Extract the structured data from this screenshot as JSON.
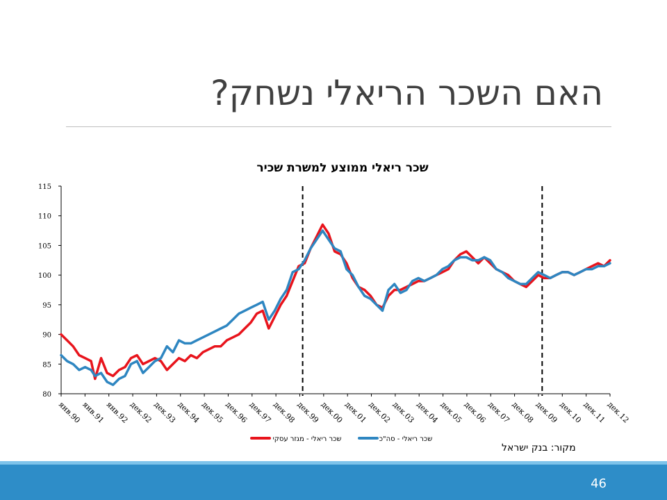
{
  "slide": {
    "title": "האם השכר הריאלי נשחק?",
    "source": "מקור: בנק ישראל",
    "page_number": "46"
  },
  "colors": {
    "series_red": "#e8141c",
    "series_blue": "#2e86c1",
    "footer": "#2e8dc8",
    "footer_accent": "#7ec3ea"
  },
  "chart_data": {
    "type": "line",
    "title": "שכר ריאלי ממוצע למשרת שכיר",
    "ylim": [
      80,
      115
    ],
    "yticks": [
      80,
      85,
      90,
      95,
      100,
      105,
      110,
      115
    ],
    "x_start": "1990-01",
    "x_end": "2012-12",
    "xtick_labels": [
      "янв.90",
      "янв.91",
      "янв.92",
      "дек.92",
      "дек.93",
      "дек.94",
      "дек.95",
      "дек.96",
      "дек.97",
      "дек.98",
      "дек.99",
      "дек.00",
      "дек.01",
      "дек.02",
      "дек.03",
      "дек.04",
      "дек.05",
      "дек.06",
      "дек.07",
      "дек.08",
      "дек.09",
      "дек.10",
      "дек.11",
      "дек.12"
    ],
    "vlines": [
      "2000-02",
      "2010-02"
    ],
    "legend_position": "bottom",
    "series": [
      {
        "name": "שכר ריאלי - מגזר עסקי",
        "color": "#e8141c",
        "points": [
          [
            "1990-01",
            90.0
          ],
          [
            "1990-04",
            89.0
          ],
          [
            "1990-07",
            88.0
          ],
          [
            "1990-10",
            86.5
          ],
          [
            "1991-01",
            86.0
          ],
          [
            "1991-04",
            85.5
          ],
          [
            "1991-06",
            82.5
          ],
          [
            "1991-09",
            86.0
          ],
          [
            "1991-12",
            83.5
          ],
          [
            "1992-03",
            83.0
          ],
          [
            "1992-06",
            84.0
          ],
          [
            "1992-09",
            84.5
          ],
          [
            "1992-12",
            86.0
          ],
          [
            "1993-03",
            86.5
          ],
          [
            "1993-06",
            85.0
          ],
          [
            "1993-09",
            85.5
          ],
          [
            "1993-12",
            86.0
          ],
          [
            "1994-03",
            85.5
          ],
          [
            "1994-06",
            84.0
          ],
          [
            "1994-09",
            85.0
          ],
          [
            "1994-12",
            86.0
          ],
          [
            "1995-03",
            85.5
          ],
          [
            "1995-06",
            86.5
          ],
          [
            "1995-09",
            86.0
          ],
          [
            "1995-12",
            87.0
          ],
          [
            "1996-03",
            87.5
          ],
          [
            "1996-06",
            88.0
          ],
          [
            "1996-09",
            88.0
          ],
          [
            "1996-12",
            89.0
          ],
          [
            "1997-03",
            89.5
          ],
          [
            "1997-06",
            90.0
          ],
          [
            "1997-09",
            91.0
          ],
          [
            "1997-12",
            92.0
          ],
          [
            "1998-03",
            93.5
          ],
          [
            "1998-06",
            94.0
          ],
          [
            "1998-09",
            91.0
          ],
          [
            "1998-12",
            93.0
          ],
          [
            "1999-03",
            95.0
          ],
          [
            "1999-06",
            96.5
          ],
          [
            "1999-09",
            99.0
          ],
          [
            "1999-12",
            101.5
          ],
          [
            "2000-03",
            102.0
          ],
          [
            "2000-06",
            104.5
          ],
          [
            "2000-09",
            106.5
          ],
          [
            "2000-12",
            108.5
          ],
          [
            "2001-03",
            107.0
          ],
          [
            "2001-06",
            104.0
          ],
          [
            "2001-09",
            103.5
          ],
          [
            "2001-12",
            102.0
          ],
          [
            "2002-03",
            99.5
          ],
          [
            "2002-06",
            98.0
          ],
          [
            "2002-09",
            97.5
          ],
          [
            "2002-12",
            96.5
          ],
          [
            "2003-03",
            95.0
          ],
          [
            "2003-06",
            94.5
          ],
          [
            "2003-09",
            96.5
          ],
          [
            "2003-12",
            97.5
          ],
          [
            "2004-03",
            97.5
          ],
          [
            "2004-06",
            98.0
          ],
          [
            "2004-09",
            98.5
          ],
          [
            "2004-12",
            99.0
          ],
          [
            "2005-03",
            99.0
          ],
          [
            "2005-06",
            99.5
          ],
          [
            "2005-09",
            100.0
          ],
          [
            "2005-12",
            100.5
          ],
          [
            "2006-03",
            101.0
          ],
          [
            "2006-06",
            102.5
          ],
          [
            "2006-09",
            103.5
          ],
          [
            "2006-12",
            104.0
          ],
          [
            "2007-03",
            103.0
          ],
          [
            "2007-06",
            102.0
          ],
          [
            "2007-09",
            103.0
          ],
          [
            "2007-12",
            102.0
          ],
          [
            "2008-03",
            101.0
          ],
          [
            "2008-06",
            100.5
          ],
          [
            "2008-09",
            100.0
          ],
          [
            "2008-12",
            99.0
          ],
          [
            "2009-03",
            98.5
          ],
          [
            "2009-06",
            98.0
          ],
          [
            "2009-09",
            99.0
          ],
          [
            "2009-12",
            100.0
          ],
          [
            "2010-03",
            99.5
          ],
          [
            "2010-06",
            99.5
          ],
          [
            "2010-09",
            100.0
          ],
          [
            "2010-12",
            100.5
          ],
          [
            "2011-03",
            100.5
          ],
          [
            "2011-06",
            100.0
          ],
          [
            "2011-09",
            100.5
          ],
          [
            "2011-12",
            101.0
          ],
          [
            "2012-03",
            101.5
          ],
          [
            "2012-06",
            102.0
          ],
          [
            "2012-09",
            101.5
          ],
          [
            "2012-12",
            102.5
          ]
        ]
      },
      {
        "name": "שכר ריאלי - סה\"כ",
        "color": "#2e86c1",
        "points": [
          [
            "1990-01",
            86.5
          ],
          [
            "1990-04",
            85.5
          ],
          [
            "1990-07",
            85.0
          ],
          [
            "1990-10",
            84.0
          ],
          [
            "1991-01",
            84.5
          ],
          [
            "1991-04",
            84.0
          ],
          [
            "1991-06",
            83.0
          ],
          [
            "1991-09",
            83.5
          ],
          [
            "1991-12",
            82.0
          ],
          [
            "1992-03",
            81.5
          ],
          [
            "1992-06",
            82.5
          ],
          [
            "1992-09",
            83.0
          ],
          [
            "1992-12",
            85.0
          ],
          [
            "1993-03",
            85.5
          ],
          [
            "1993-06",
            83.5
          ],
          [
            "1993-09",
            84.5
          ],
          [
            "1993-12",
            85.5
          ],
          [
            "1994-03",
            86.0
          ],
          [
            "1994-06",
            88.0
          ],
          [
            "1994-09",
            87.0
          ],
          [
            "1994-12",
            89.0
          ],
          [
            "1995-03",
            88.5
          ],
          [
            "1995-06",
            88.5
          ],
          [
            "1995-09",
            89.0
          ],
          [
            "1995-12",
            89.5
          ],
          [
            "1996-03",
            90.0
          ],
          [
            "1996-06",
            90.5
          ],
          [
            "1996-09",
            91.0
          ],
          [
            "1996-12",
            91.5
          ],
          [
            "1997-03",
            92.5
          ],
          [
            "1997-06",
            93.5
          ],
          [
            "1997-09",
            94.0
          ],
          [
            "1997-12",
            94.5
          ],
          [
            "1998-03",
            95.0
          ],
          [
            "1998-06",
            95.5
          ],
          [
            "1998-09",
            92.5
          ],
          [
            "1998-12",
            94.0
          ],
          [
            "1999-03",
            96.0
          ],
          [
            "1999-06",
            97.5
          ],
          [
            "1999-09",
            100.5
          ],
          [
            "1999-12",
            101.0
          ],
          [
            "2000-03",
            102.5
          ],
          [
            "2000-06",
            104.5
          ],
          [
            "2000-09",
            106.0
          ],
          [
            "2000-12",
            107.5
          ],
          [
            "2001-03",
            106.0
          ],
          [
            "2001-06",
            104.5
          ],
          [
            "2001-09",
            104.0
          ],
          [
            "2001-12",
            101.0
          ],
          [
            "2002-03",
            100.0
          ],
          [
            "2002-06",
            98.0
          ],
          [
            "2002-09",
            96.5
          ],
          [
            "2002-12",
            96.0
          ],
          [
            "2003-03",
            95.0
          ],
          [
            "2003-06",
            94.0
          ],
          [
            "2003-09",
            97.5
          ],
          [
            "2003-12",
            98.5
          ],
          [
            "2004-03",
            97.0
          ],
          [
            "2004-06",
            97.5
          ],
          [
            "2004-09",
            99.0
          ],
          [
            "2004-12",
            99.5
          ],
          [
            "2005-03",
            99.0
          ],
          [
            "2005-06",
            99.5
          ],
          [
            "2005-09",
            100.0
          ],
          [
            "2005-12",
            101.0
          ],
          [
            "2006-03",
            101.5
          ],
          [
            "2006-06",
            102.5
          ],
          [
            "2006-09",
            103.0
          ],
          [
            "2006-12",
            103.0
          ],
          [
            "2007-03",
            102.5
          ],
          [
            "2007-06",
            102.5
          ],
          [
            "2007-09",
            103.0
          ],
          [
            "2007-12",
            102.5
          ],
          [
            "2008-03",
            101.0
          ],
          [
            "2008-06",
            100.5
          ],
          [
            "2008-09",
            99.5
          ],
          [
            "2008-12",
            99.0
          ],
          [
            "2009-03",
            98.5
          ],
          [
            "2009-06",
            98.5
          ],
          [
            "2009-09",
            99.5
          ],
          [
            "2009-12",
            100.5
          ],
          [
            "2010-03",
            100.0
          ],
          [
            "2010-06",
            99.5
          ],
          [
            "2010-09",
            100.0
          ],
          [
            "2010-12",
            100.5
          ],
          [
            "2011-03",
            100.5
          ],
          [
            "2011-06",
            100.0
          ],
          [
            "2011-09",
            100.5
          ],
          [
            "2011-12",
            101.0
          ],
          [
            "2012-03",
            101.0
          ],
          [
            "2012-06",
            101.5
          ],
          [
            "2012-09",
            101.5
          ],
          [
            "2012-12",
            102.0
          ]
        ]
      }
    ]
  }
}
